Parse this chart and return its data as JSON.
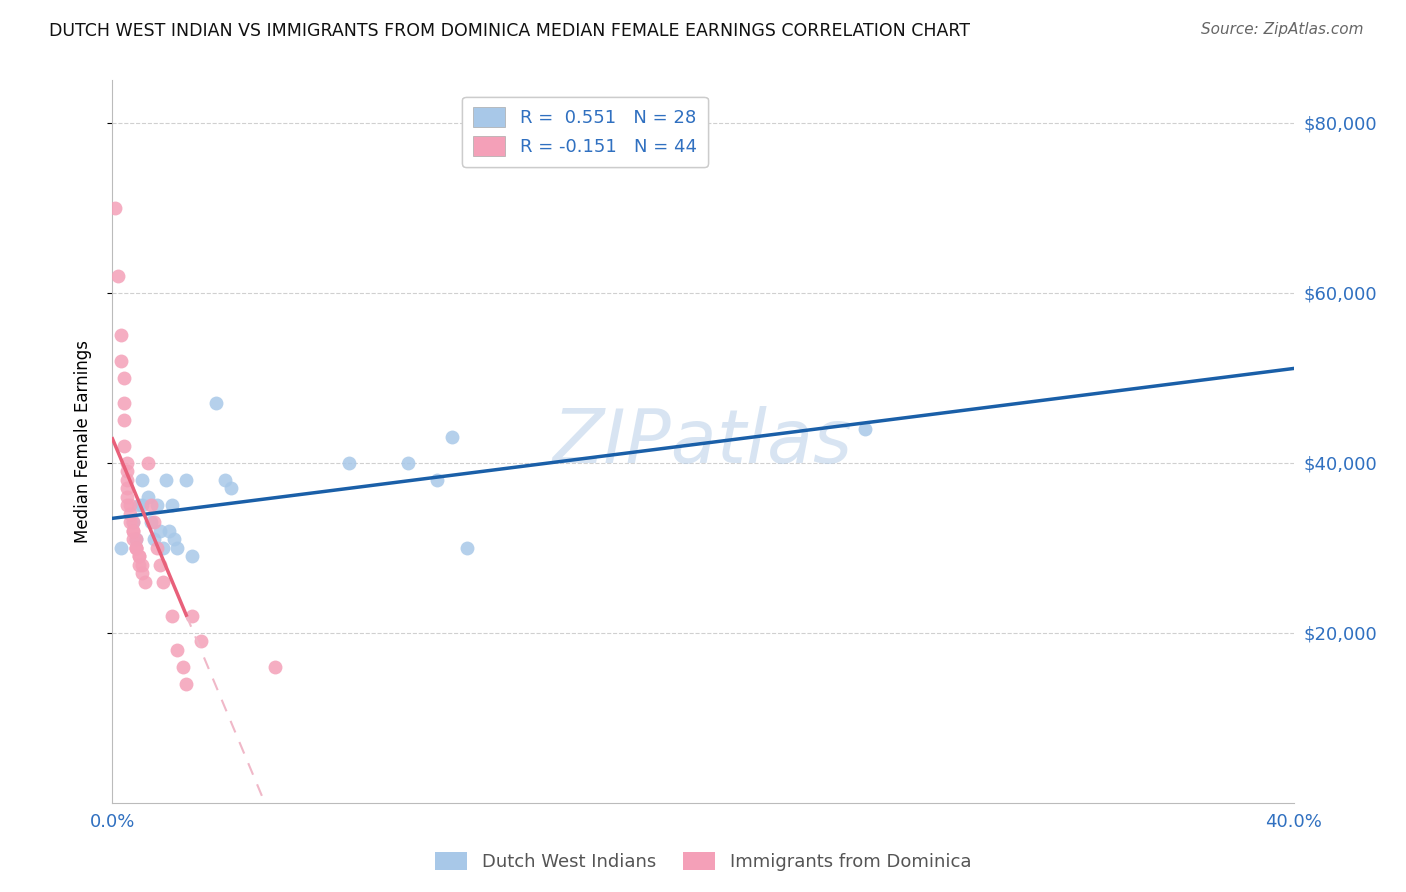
{
  "title": "DUTCH WEST INDIAN VS IMMIGRANTS FROM DOMINICA MEDIAN FEMALE EARNINGS CORRELATION CHART",
  "source": "Source: ZipAtlas.com",
  "ylabel": "Median Female Earnings",
  "xlim": [
    0.0,
    0.4
  ],
  "ylim": [
    0,
    85000
  ],
  "yticks": [
    20000,
    40000,
    60000,
    80000
  ],
  "ytick_labels_right": [
    "$20,000",
    "$40,000",
    "$60,000",
    "$80,000"
  ],
  "xticks": [
    0.0,
    0.1,
    0.2,
    0.3,
    0.4
  ],
  "xtick_labels": [
    "0.0%",
    "",
    "",
    "",
    "40.0%"
  ],
  "blue_dot_color": "#a8c8e8",
  "pink_dot_color": "#f4a0b8",
  "blue_line_color": "#1a5fa8",
  "pink_line_solid_color": "#e8607a",
  "pink_line_dash_color": "#f0b8c8",
  "tick_label_color": "#3070c0",
  "watermark": "ZIPatlas",
  "legend_label_blue": "R =  0.551   N = 28",
  "legend_label_pink": "R = -0.151   N = 44",
  "legend_bottom_blue": "Dutch West Indians",
  "legend_bottom_pink": "Immigrants from Dominica",
  "blue_x": [
    0.003,
    0.007,
    0.008,
    0.009,
    0.01,
    0.01,
    0.012,
    0.013,
    0.014,
    0.015,
    0.016,
    0.017,
    0.018,
    0.019,
    0.02,
    0.021,
    0.022,
    0.025,
    0.027,
    0.035,
    0.038,
    0.04,
    0.08,
    0.1,
    0.11,
    0.115,
    0.12,
    0.255
  ],
  "blue_y": [
    30000,
    33000,
    31000,
    35000,
    38000,
    35000,
    36000,
    33000,
    31000,
    35000,
    32000,
    30000,
    38000,
    32000,
    35000,
    31000,
    30000,
    38000,
    29000,
    47000,
    38000,
    37000,
    40000,
    40000,
    38000,
    43000,
    30000,
    44000
  ],
  "pink_x": [
    0.001,
    0.002,
    0.003,
    0.003,
    0.004,
    0.004,
    0.004,
    0.004,
    0.005,
    0.005,
    0.005,
    0.005,
    0.005,
    0.005,
    0.006,
    0.006,
    0.006,
    0.007,
    0.007,
    0.007,
    0.007,
    0.008,
    0.008,
    0.008,
    0.008,
    0.009,
    0.009,
    0.009,
    0.01,
    0.01,
    0.011,
    0.012,
    0.013,
    0.014,
    0.015,
    0.016,
    0.017,
    0.02,
    0.022,
    0.024,
    0.025,
    0.027,
    0.03,
    0.055
  ],
  "pink_y": [
    70000,
    62000,
    55000,
    52000,
    50000,
    47000,
    45000,
    42000,
    40000,
    39000,
    38000,
    37000,
    36000,
    35000,
    35000,
    34000,
    33000,
    33000,
    32000,
    32000,
    31000,
    31000,
    30000,
    30000,
    30000,
    29000,
    29000,
    28000,
    28000,
    27000,
    26000,
    40000,
    35000,
    33000,
    30000,
    28000,
    26000,
    22000,
    18000,
    16000,
    14000,
    22000,
    19000,
    16000
  ]
}
